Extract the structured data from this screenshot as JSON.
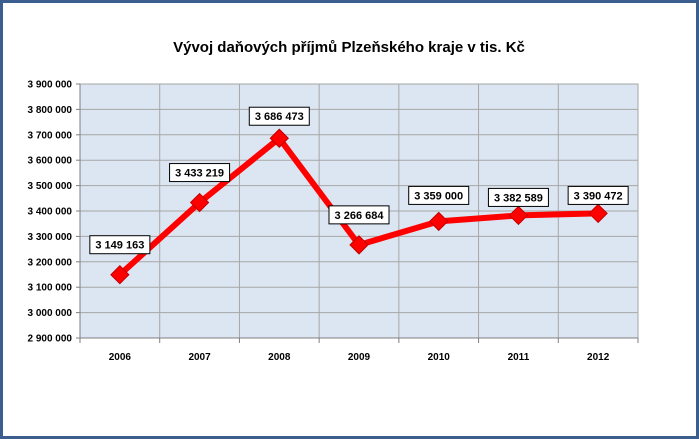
{
  "chart_data": {
    "type": "line",
    "title": "Vývoj daňových příjmů Plzeňského kraje v tis. Kč",
    "xlabel": "",
    "ylabel": "",
    "categories": [
      "2006",
      "2007",
      "2008",
      "2009",
      "2010",
      "2011",
      "2012"
    ],
    "series": [
      {
        "values": [
          3149163,
          3433219,
          3686473,
          3266684,
          3359000,
          3382589,
          3390472
        ],
        "labels": [
          "3 149 163",
          "3 433 219",
          "3 686 473",
          "3 266 684",
          "3 359 000",
          "3 382 589",
          "3 390 472"
        ],
        "color": "#ff0000"
      }
    ],
    "ylim": [
      2900000,
      3900000
    ],
    "yticks": [
      2900000,
      3000000,
      3100000,
      3200000,
      3300000,
      3400000,
      3500000,
      3600000,
      3700000,
      3800000,
      3900000
    ],
    "ytick_labels": [
      "2 900 000",
      "3 000 000",
      "3 100 000",
      "3 200 000",
      "3 300 000",
      "3 400 000",
      "3 500 000",
      "3 600 000",
      "3 700 000",
      "3 800 000",
      "3 900 000"
    ],
    "grid": true,
    "legend": "none",
    "plot_background": "#dce6f2",
    "frame_color": "#3c5e8f"
  }
}
